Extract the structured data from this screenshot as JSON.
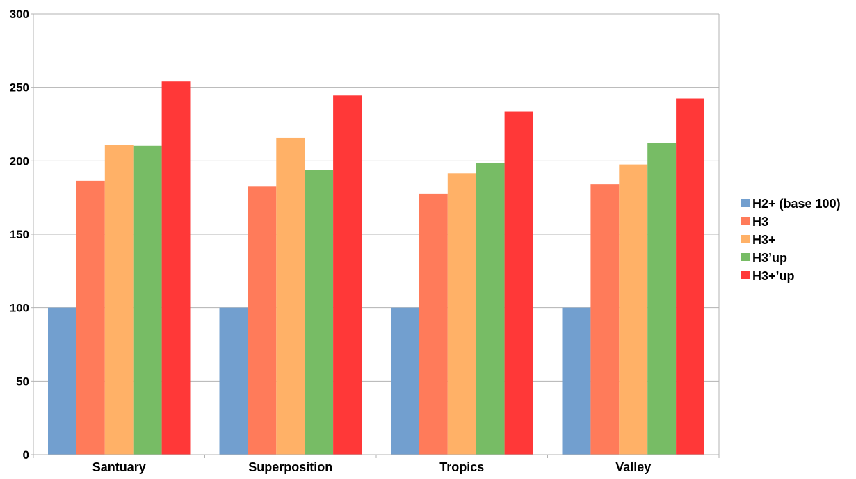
{
  "chart_data": {
    "type": "bar",
    "categories": [
      "Santuary",
      "Superposition",
      "Tropics",
      "Valley"
    ],
    "series": [
      {
        "name": "H2+ (base 100)",
        "color": "#729fcf",
        "values": [
          100,
          100,
          100,
          100
        ]
      },
      {
        "name": "H3",
        "color": "#ff7b5a",
        "values": [
          186.5,
          182.5,
          177.5,
          184
        ]
      },
      {
        "name": "H3+",
        "color": "#ffb167",
        "values": [
          210.8,
          215.8,
          191.5,
          197.5
        ]
      },
      {
        "name": "H3’up",
        "color": "#77bc65",
        "values": [
          210.2,
          193.8,
          198.5,
          212
        ]
      },
      {
        "name": "H3+’up",
        "color": "#ff3838",
        "values": [
          254,
          244.5,
          233.5,
          242.5
        ]
      }
    ],
    "yticks": [
      "0",
      "50",
      "100",
      "150",
      "200",
      "250",
      "300"
    ],
    "ylim": [
      0,
      300
    ],
    "grid": true,
    "legend_position": "right"
  }
}
